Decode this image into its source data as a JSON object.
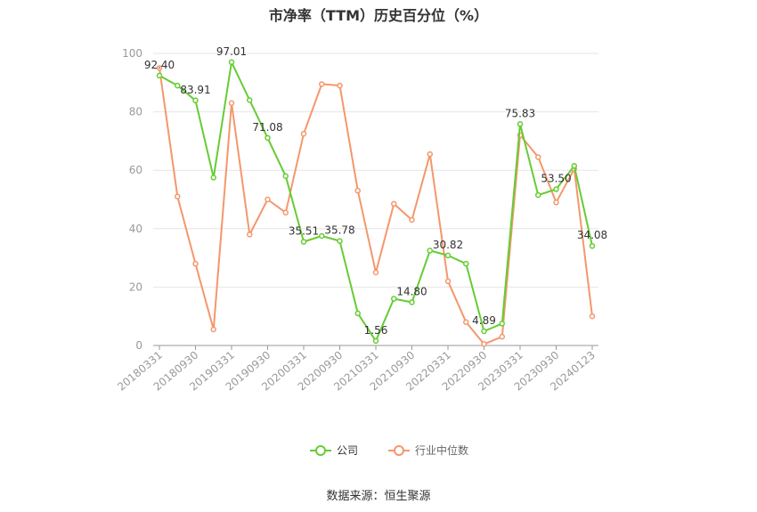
{
  "title": "市净率（TTM）历史百分位（%）",
  "source": "数据来源：恒生聚源",
  "colors": {
    "company": "#66cc33",
    "industry": "#f4976c",
    "grid": "#e6e6e6",
    "axis": "#999999",
    "label": "#333333"
  },
  "chart_data": {
    "type": "line",
    "ylim": [
      0,
      100
    ],
    "yticks": [
      0,
      20,
      40,
      60,
      80,
      100
    ],
    "xtick_labels": [
      "20180331",
      "20180930",
      "20190331",
      "20190930",
      "20200331",
      "20200930",
      "20210331",
      "20210930",
      "20220331",
      "20220930",
      "20230331",
      "20230930",
      "20240123"
    ],
    "x": [
      "20180331",
      "20180630",
      "20180930",
      "20181231",
      "20190331",
      "20190630",
      "20190930",
      "20191231",
      "20200331",
      "20200630",
      "20200930",
      "20201231",
      "20210331",
      "20210630",
      "20210930",
      "20211231",
      "20220331",
      "20220630",
      "20220930",
      "20221231",
      "20230331",
      "20230630",
      "20230930",
      "20231231",
      "20240123"
    ],
    "legend": [
      "公司",
      "行业中位数"
    ],
    "legend_position": "bottom",
    "grid": true,
    "series": [
      {
        "name": "公司",
        "values": [
          92.4,
          89.0,
          83.91,
          57.5,
          97.01,
          84.0,
          71.08,
          58.0,
          35.51,
          37.5,
          35.78,
          11.0,
          1.56,
          16.0,
          14.8,
          32.5,
          30.82,
          28.0,
          4.89,
          7.5,
          75.83,
          51.5,
          53.5,
          61.5,
          34.08
        ],
        "labels": {
          "0": "92.40",
          "2": "83.91",
          "4": "97.01",
          "6": "71.08",
          "8": "35.51",
          "10": "35.78",
          "12": "1.56",
          "14": "14.80",
          "16": "30.82",
          "18": "4.89",
          "20": "75.83",
          "22": "53.50",
          "24": "34.08"
        }
      },
      {
        "name": "行业中位数",
        "values": [
          95.0,
          51.0,
          28.0,
          5.5,
          83.0,
          38.0,
          50.0,
          45.5,
          72.5,
          89.5,
          89.0,
          53.0,
          25.0,
          48.5,
          43.0,
          65.5,
          22.0,
          8.0,
          0.5,
          3.0,
          72.0,
          64.5,
          49.0,
          60.5,
          10.0
        ]
      }
    ]
  }
}
